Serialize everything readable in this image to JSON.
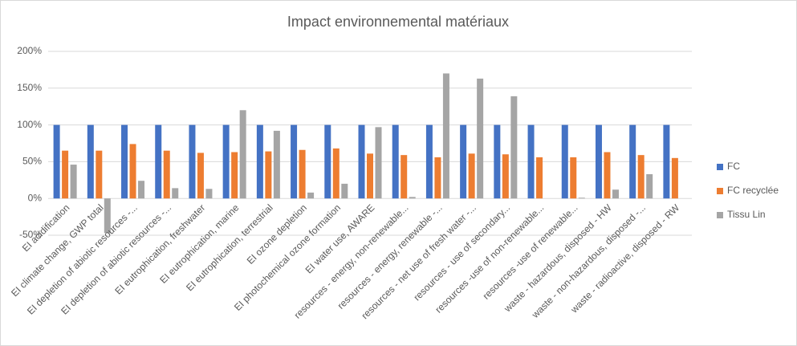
{
  "chart_data": {
    "type": "bar",
    "title": "Impact environnemental matériaux",
    "categories": [
      "EI acidification",
      "EI climate change, GWP total",
      "EI depletion of abiotic resources -...",
      "EI depletion of abiotic resources -...",
      "EI eutrophication, freshwater",
      "EI eutrophication, marine",
      "EI eutrophication, terrestrial",
      "EI ozone depletion",
      "EI photochemical ozone formation",
      "EI water use, AWARE",
      "resources - energy, non-renewable...",
      "resources - energy, renewable -...",
      "resources - net use of fresh water -...",
      "resources - use of secondary...",
      "resources -use of non-renewable...",
      "resources -use of renewable...",
      "waste - hazardous, disposed - HW",
      "waste - non-hazardous, disposed -...",
      "waste - radioactive, disposed - RW"
    ],
    "series": [
      {
        "name": "FC",
        "color": "#4472c4",
        "values": [
          100,
          100,
          100,
          100,
          100,
          100,
          100,
          100,
          100,
          100,
          100,
          100,
          100,
          100,
          100,
          100,
          100,
          100,
          100
        ]
      },
      {
        "name": "FC recyclée",
        "color": "#ed7d31",
        "values": [
          65,
          65,
          74,
          65,
          62,
          63,
          64,
          66,
          68,
          61,
          59,
          56,
          61,
          60,
          56,
          56,
          63,
          59,
          55
        ]
      },
      {
        "name": "Tissu Lin",
        "color": "#a5a5a5",
        "values": [
          46,
          -47,
          24,
          14,
          13,
          120,
          92,
          8,
          20,
          97,
          2,
          170,
          163,
          139,
          0,
          1,
          12,
          33,
          0
        ]
      }
    ],
    "ylim": [
      -50,
      200
    ],
    "yticks": [
      {
        "value": -50,
        "label": "-50%"
      },
      {
        "value": 0,
        "label": "0%"
      },
      {
        "value": 50,
        "label": "50%"
      },
      {
        "value": 100,
        "label": "100%"
      },
      {
        "value": 150,
        "label": "150%"
      },
      {
        "value": 200,
        "label": "200%"
      }
    ],
    "grid": true,
    "legend": "right"
  }
}
